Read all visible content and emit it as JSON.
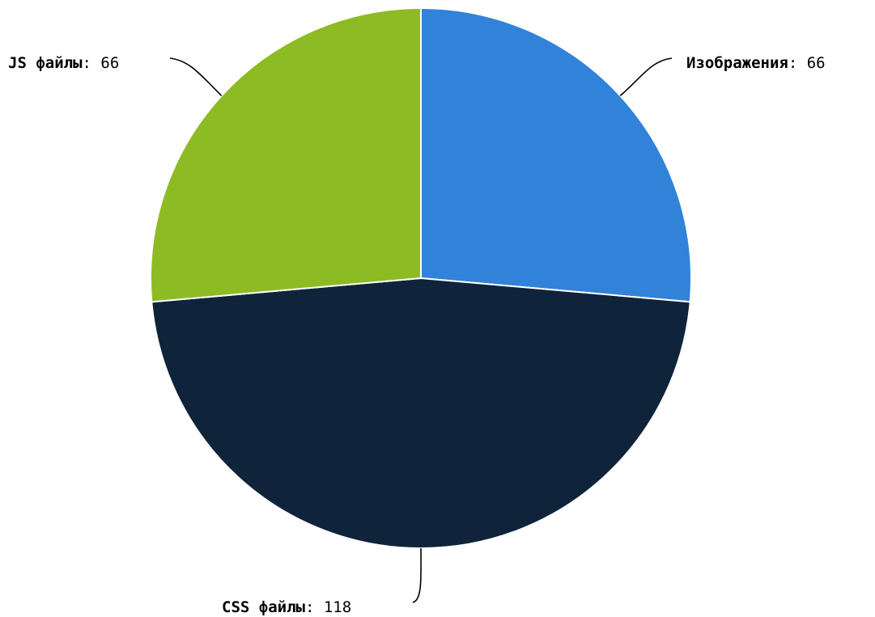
{
  "chart_data": {
    "type": "pie",
    "title": "",
    "slices": [
      {
        "label": "Изображения",
        "value": 66,
        "color": "#3182d9"
      },
      {
        "label": "CSS файлы",
        "value": 118,
        "color": "#0f233b"
      },
      {
        "label": "JS файлы",
        "value": 66,
        "color": "#8dbb24"
      }
    ],
    "legend": "none",
    "data_labels": "outside with leader lines"
  }
}
